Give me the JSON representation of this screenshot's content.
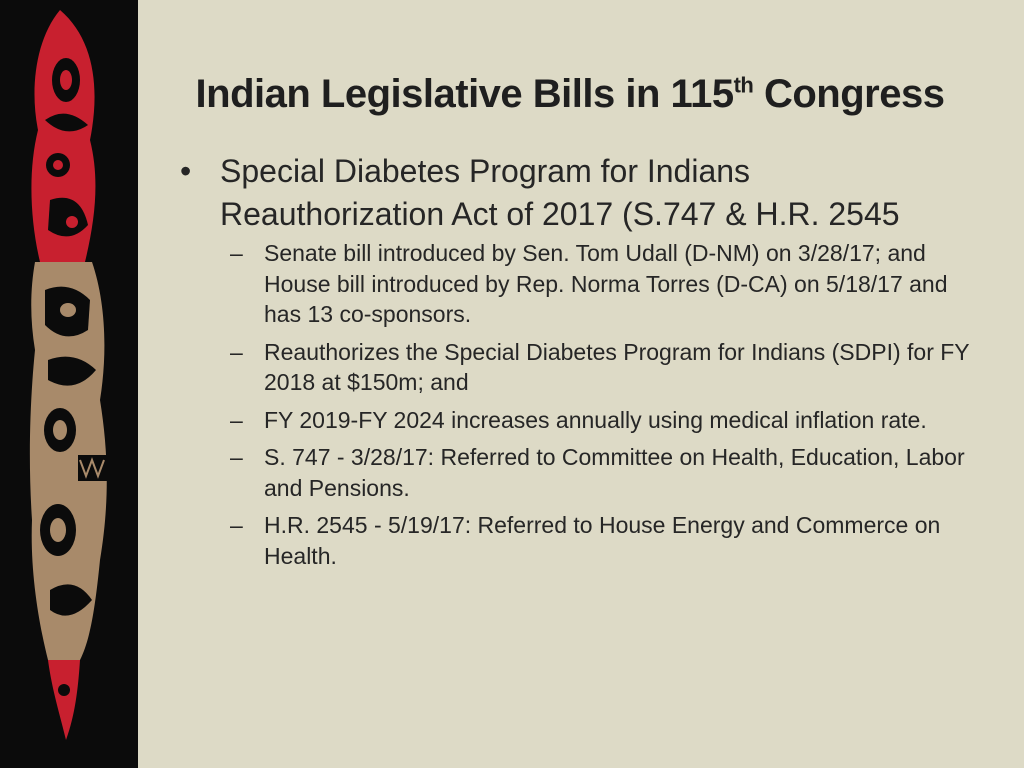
{
  "slide": {
    "title_main": "Indian Legislative Bills in 115",
    "title_sup": "th",
    "title_end": " Congress"
  },
  "bullets": [
    {
      "text": "Special Diabetes Program for Indians Reauthorization Act of 2017 (S.747 & H.R. 2545",
      "sub": [
        "Senate bill introduced by Sen. Tom Udall (D-NM) on 3/28/17; and House bill introduced by Rep. Norma Torres (D-CA) on 5/18/17 and has 13 co-sponsors.",
        "Reauthorizes the Special Diabetes Program for Indians (SDPI) for FY 2018 at $150m; and",
        "FY 2019-FY 2024 increases annually using medical inflation rate.",
        "S. 747 - 3/28/17:  Referred to Committee on Health, Education, Labor and Pensions.",
        "H.R. 2545 -  5/19/17:  Referred to House Energy and Commerce on Health."
      ]
    }
  ],
  "glyphs": {
    "bullet": "•",
    "dash": "–"
  },
  "colors": {
    "panel": "#0b0b0b",
    "red": "#c8202f",
    "tan": "#a88a6a",
    "background": "#dddac6"
  },
  "icons": {
    "side_art": "totem-pole-formline-art-icon"
  }
}
